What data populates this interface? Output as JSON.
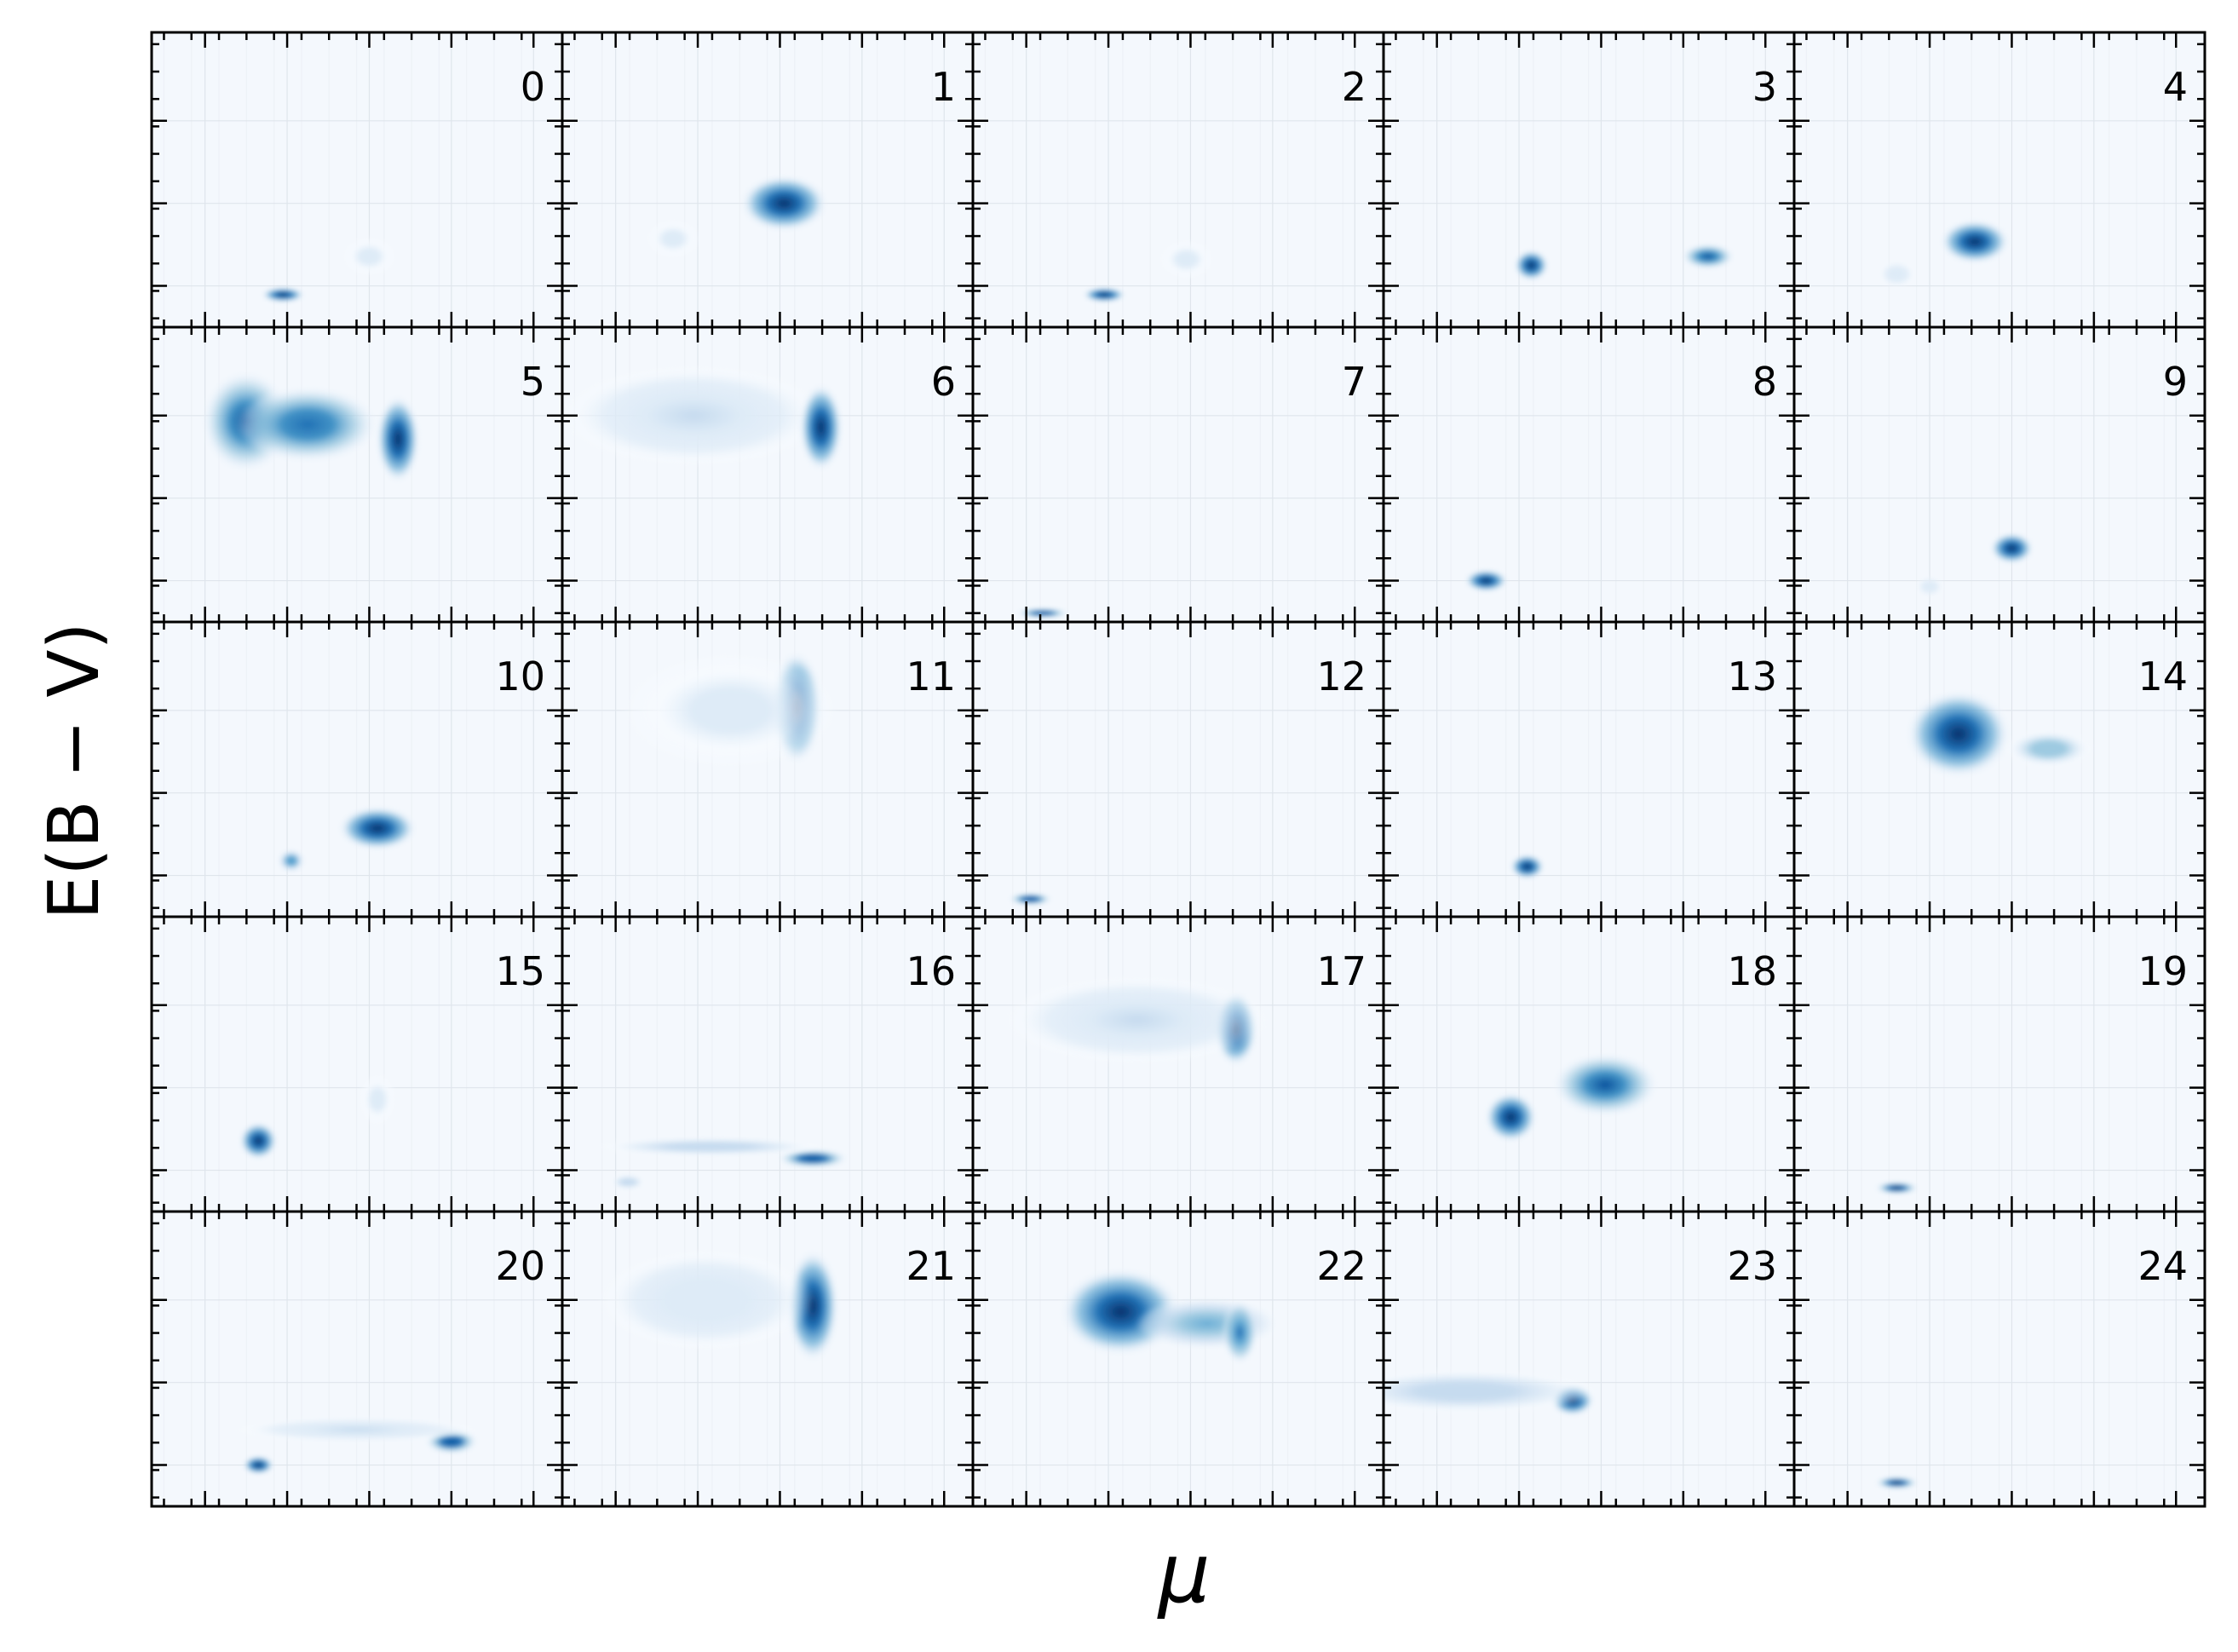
{
  "chart_data": {
    "type": "heatmap",
    "layout": {
      "rows": 5,
      "cols": 5
    },
    "xlabel": "μ",
    "ylabel": "E(B − V)",
    "colormap": [
      "#f7fbff",
      "#deebf7",
      "#c6dbef",
      "#9ecae1",
      "#6baed6",
      "#4292c6",
      "#2171b5",
      "#08519c",
      "#08306b"
    ],
    "colors": {
      "background": "#f4f8fd",
      "grid": "#dfe5ec",
      "axes": "#000000"
    },
    "tick_labels_shown": false,
    "grid": true,
    "x_range": [
      0,
      1
    ],
    "y_range": [
      0,
      1
    ],
    "panels": [
      {
        "label": "0",
        "blobs": [
          {
            "x": 0.32,
            "y": 0.11,
            "sx": 0.025,
            "sy": 0.012,
            "w": 1.0
          },
          {
            "x": 0.53,
            "y": 0.24,
            "sx": 0.03,
            "sy": 0.03,
            "w": 0.08
          }
        ]
      },
      {
        "label": "1",
        "blobs": [
          {
            "x": 0.54,
            "y": 0.42,
            "sx": 0.05,
            "sy": 0.045,
            "w": 1.0
          },
          {
            "x": 0.27,
            "y": 0.3,
            "sx": 0.03,
            "sy": 0.03,
            "w": 0.1
          }
        ]
      },
      {
        "label": "2",
        "blobs": [
          {
            "x": 0.32,
            "y": 0.11,
            "sx": 0.025,
            "sy": 0.012,
            "w": 1.0
          },
          {
            "x": 0.52,
            "y": 0.23,
            "sx": 0.03,
            "sy": 0.03,
            "w": 0.08
          }
        ]
      },
      {
        "label": "3",
        "blobs": [
          {
            "x": 0.36,
            "y": 0.21,
            "sx": 0.02,
            "sy": 0.025,
            "w": 1.0
          },
          {
            "x": 0.79,
            "y": 0.24,
            "sx": 0.03,
            "sy": 0.02,
            "w": 0.85
          }
        ]
      },
      {
        "label": "4",
        "blobs": [
          {
            "x": 0.44,
            "y": 0.29,
            "sx": 0.04,
            "sy": 0.035,
            "w": 1.0
          },
          {
            "x": 0.25,
            "y": 0.18,
            "sx": 0.02,
            "sy": 0.02,
            "w": 0.15
          }
        ]
      },
      {
        "label": "5",
        "blobs": [
          {
            "x": 0.23,
            "y": 0.68,
            "sx": 0.05,
            "sy": 0.08,
            "w": 0.85
          },
          {
            "x": 0.38,
            "y": 0.67,
            "sx": 0.08,
            "sy": 0.06,
            "w": 0.75
          },
          {
            "x": 0.6,
            "y": 0.62,
            "sx": 0.025,
            "sy": 0.07,
            "w": 1.0
          }
        ]
      },
      {
        "label": "6",
        "blobs": [
          {
            "x": 0.32,
            "y": 0.7,
            "sx": 0.15,
            "sy": 0.08,
            "w": 0.2
          },
          {
            "x": 0.63,
            "y": 0.66,
            "sx": 0.025,
            "sy": 0.07,
            "w": 1.0
          }
        ]
      },
      {
        "label": "7",
        "blobs": [
          {
            "x": 0.17,
            "y": 0.03,
            "sx": 0.03,
            "sy": 0.008,
            "w": 0.9
          }
        ]
      },
      {
        "label": "8",
        "blobs": [
          {
            "x": 0.25,
            "y": 0.14,
            "sx": 0.025,
            "sy": 0.018,
            "w": 1.0
          }
        ]
      },
      {
        "label": "9",
        "blobs": [
          {
            "x": 0.53,
            "y": 0.25,
            "sx": 0.025,
            "sy": 0.025,
            "w": 1.0
          },
          {
            "x": 0.33,
            "y": 0.12,
            "sx": 0.015,
            "sy": 0.015,
            "w": 0.15
          }
        ]
      },
      {
        "label": "10",
        "blobs": [
          {
            "x": 0.55,
            "y": 0.3,
            "sx": 0.045,
            "sy": 0.035,
            "w": 1.0
          },
          {
            "x": 0.34,
            "y": 0.19,
            "sx": 0.015,
            "sy": 0.018,
            "w": 0.65
          }
        ]
      },
      {
        "label": "11",
        "blobs": [
          {
            "x": 0.57,
            "y": 0.71,
            "sx": 0.03,
            "sy": 0.09,
            "w": 1.0
          },
          {
            "x": 0.41,
            "y": 0.7,
            "sx": 0.12,
            "sy": 0.09,
            "w": 0.12
          }
        ]
      },
      {
        "label": "12",
        "blobs": [
          {
            "x": 0.14,
            "y": 0.06,
            "sx": 0.025,
            "sy": 0.01,
            "w": 0.9
          }
        ]
      },
      {
        "label": "13",
        "blobs": [
          {
            "x": 0.35,
            "y": 0.17,
            "sx": 0.02,
            "sy": 0.02,
            "w": 1.0
          }
        ]
      },
      {
        "label": "14",
        "blobs": [
          {
            "x": 0.4,
            "y": 0.62,
            "sx": 0.06,
            "sy": 0.07,
            "w": 1.0
          },
          {
            "x": 0.62,
            "y": 0.57,
            "sx": 0.05,
            "sy": 0.03,
            "w": 0.4
          }
        ]
      },
      {
        "label": "15",
        "blobs": [
          {
            "x": 0.26,
            "y": 0.24,
            "sx": 0.022,
            "sy": 0.03,
            "w": 1.0
          },
          {
            "x": 0.55,
            "y": 0.38,
            "sx": 0.02,
            "sy": 0.04,
            "w": 0.1
          }
        ]
      },
      {
        "label": "16",
        "blobs": [
          {
            "x": 0.61,
            "y": 0.18,
            "sx": 0.04,
            "sy": 0.015,
            "w": 0.9
          },
          {
            "x": 0.36,
            "y": 0.22,
            "sx": 0.13,
            "sy": 0.015,
            "w": 0.25
          },
          {
            "x": 0.16,
            "y": 0.1,
            "sx": 0.02,
            "sy": 0.012,
            "w": 0.3
          }
        ]
      },
      {
        "label": "17",
        "blobs": [
          {
            "x": 0.64,
            "y": 0.62,
            "sx": 0.025,
            "sy": 0.06,
            "w": 1.0
          },
          {
            "x": 0.4,
            "y": 0.65,
            "sx": 0.15,
            "sy": 0.07,
            "w": 0.2
          }
        ]
      },
      {
        "label": "18",
        "blobs": [
          {
            "x": 0.31,
            "y": 0.32,
            "sx": 0.03,
            "sy": 0.04,
            "w": 1.0
          },
          {
            "x": 0.54,
            "y": 0.43,
            "sx": 0.06,
            "sy": 0.05,
            "w": 0.85
          }
        ]
      },
      {
        "label": "19",
        "blobs": [
          {
            "x": 0.25,
            "y": 0.08,
            "sx": 0.025,
            "sy": 0.01,
            "w": 0.95
          }
        ]
      },
      {
        "label": "20",
        "blobs": [
          {
            "x": 0.26,
            "y": 0.14,
            "sx": 0.018,
            "sy": 0.015,
            "w": 1.0
          },
          {
            "x": 0.73,
            "y": 0.22,
            "sx": 0.03,
            "sy": 0.02,
            "w": 0.9
          },
          {
            "x": 0.5,
            "y": 0.26,
            "sx": 0.14,
            "sy": 0.02,
            "w": 0.22
          }
        ]
      },
      {
        "label": "21",
        "blobs": [
          {
            "x": 0.61,
            "y": 0.68,
            "sx": 0.03,
            "sy": 0.09,
            "w": 1.0
          },
          {
            "x": 0.35,
            "y": 0.7,
            "sx": 0.12,
            "sy": 0.08,
            "w": 0.15
          }
        ]
      },
      {
        "label": "22",
        "blobs": [
          {
            "x": 0.36,
            "y": 0.66,
            "sx": 0.07,
            "sy": 0.07,
            "w": 1.0
          },
          {
            "x": 0.57,
            "y": 0.62,
            "sx": 0.08,
            "sy": 0.04,
            "w": 0.5
          },
          {
            "x": 0.65,
            "y": 0.59,
            "sx": 0.02,
            "sy": 0.05,
            "w": 0.7
          }
        ]
      },
      {
        "label": "23",
        "blobs": [
          {
            "x": 0.46,
            "y": 0.36,
            "sx": 0.025,
            "sy": 0.025,
            "w": 1.0
          },
          {
            "x": 0.2,
            "y": 0.39,
            "sx": 0.15,
            "sy": 0.035,
            "w": 0.3
          }
        ]
      },
      {
        "label": "24",
        "blobs": [
          {
            "x": 0.25,
            "y": 0.08,
            "sx": 0.025,
            "sy": 0.01,
            "w": 0.95
          }
        ]
      }
    ]
  }
}
